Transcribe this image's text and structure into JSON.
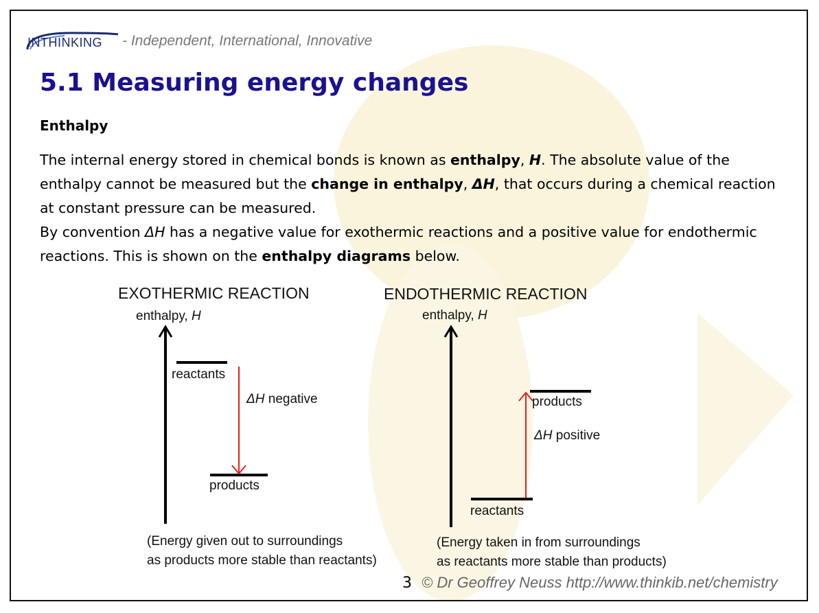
{
  "header": {
    "logo_text": "INTHINKING",
    "tagline": "- Independent, International, Innovative"
  },
  "title": "5.1 Measuring energy changes",
  "subheading": "Enthalpy",
  "paragraph1": {
    "t1": "The internal energy stored in chemical bonds  is known as ",
    "b1": "enthalpy",
    "t2": ", ",
    "bi1": "H",
    "t3": ". The absolute value of the enthalpy cannot be measured but the ",
    "b2": "change in enthalpy",
    "t4": ", ",
    "bi2": "ΔH",
    "t5": ", that occurs during a chemical reaction at constant pressure can be measured."
  },
  "paragraph2": {
    "t1": "By convention ",
    "i1": "ΔH",
    "t2": " has a negative value for exothermic reactions and a positive value for endothermic reactions. This is shown on the ",
    "b1": "enthalpy diagrams",
    "t3": " below."
  },
  "exo": {
    "title": "EXOTHERMIC REACTION",
    "axis_label": "enthalpy, ",
    "axis_symbol": "H",
    "reactants": "reactants",
    "products": "products",
    "delta_symbol": "ΔH",
    "delta_word": " negative",
    "note_line1": "(Energy given out to surroundings",
    "note_line2": "as products more stable than reactants)"
  },
  "endo": {
    "title": "ENDOTHERMIC REACTION",
    "axis_label": "enthalpy, ",
    "axis_symbol": "H",
    "reactants": "reactants",
    "products": "products",
    "delta_symbol": "ΔH",
    "delta_word": " positive",
    "note_line1": "(Energy taken in from surroundings",
    "note_line2": "as reactants more stable than products)"
  },
  "footer": {
    "page_number": "3",
    "copyright": "© Dr Geoffrey Neuss http://www.thinkib.net/chemistry"
  },
  "colors": {
    "title": "#1a1290",
    "arrow_red": "#e0201c",
    "background_accent": "#f7efcf"
  }
}
